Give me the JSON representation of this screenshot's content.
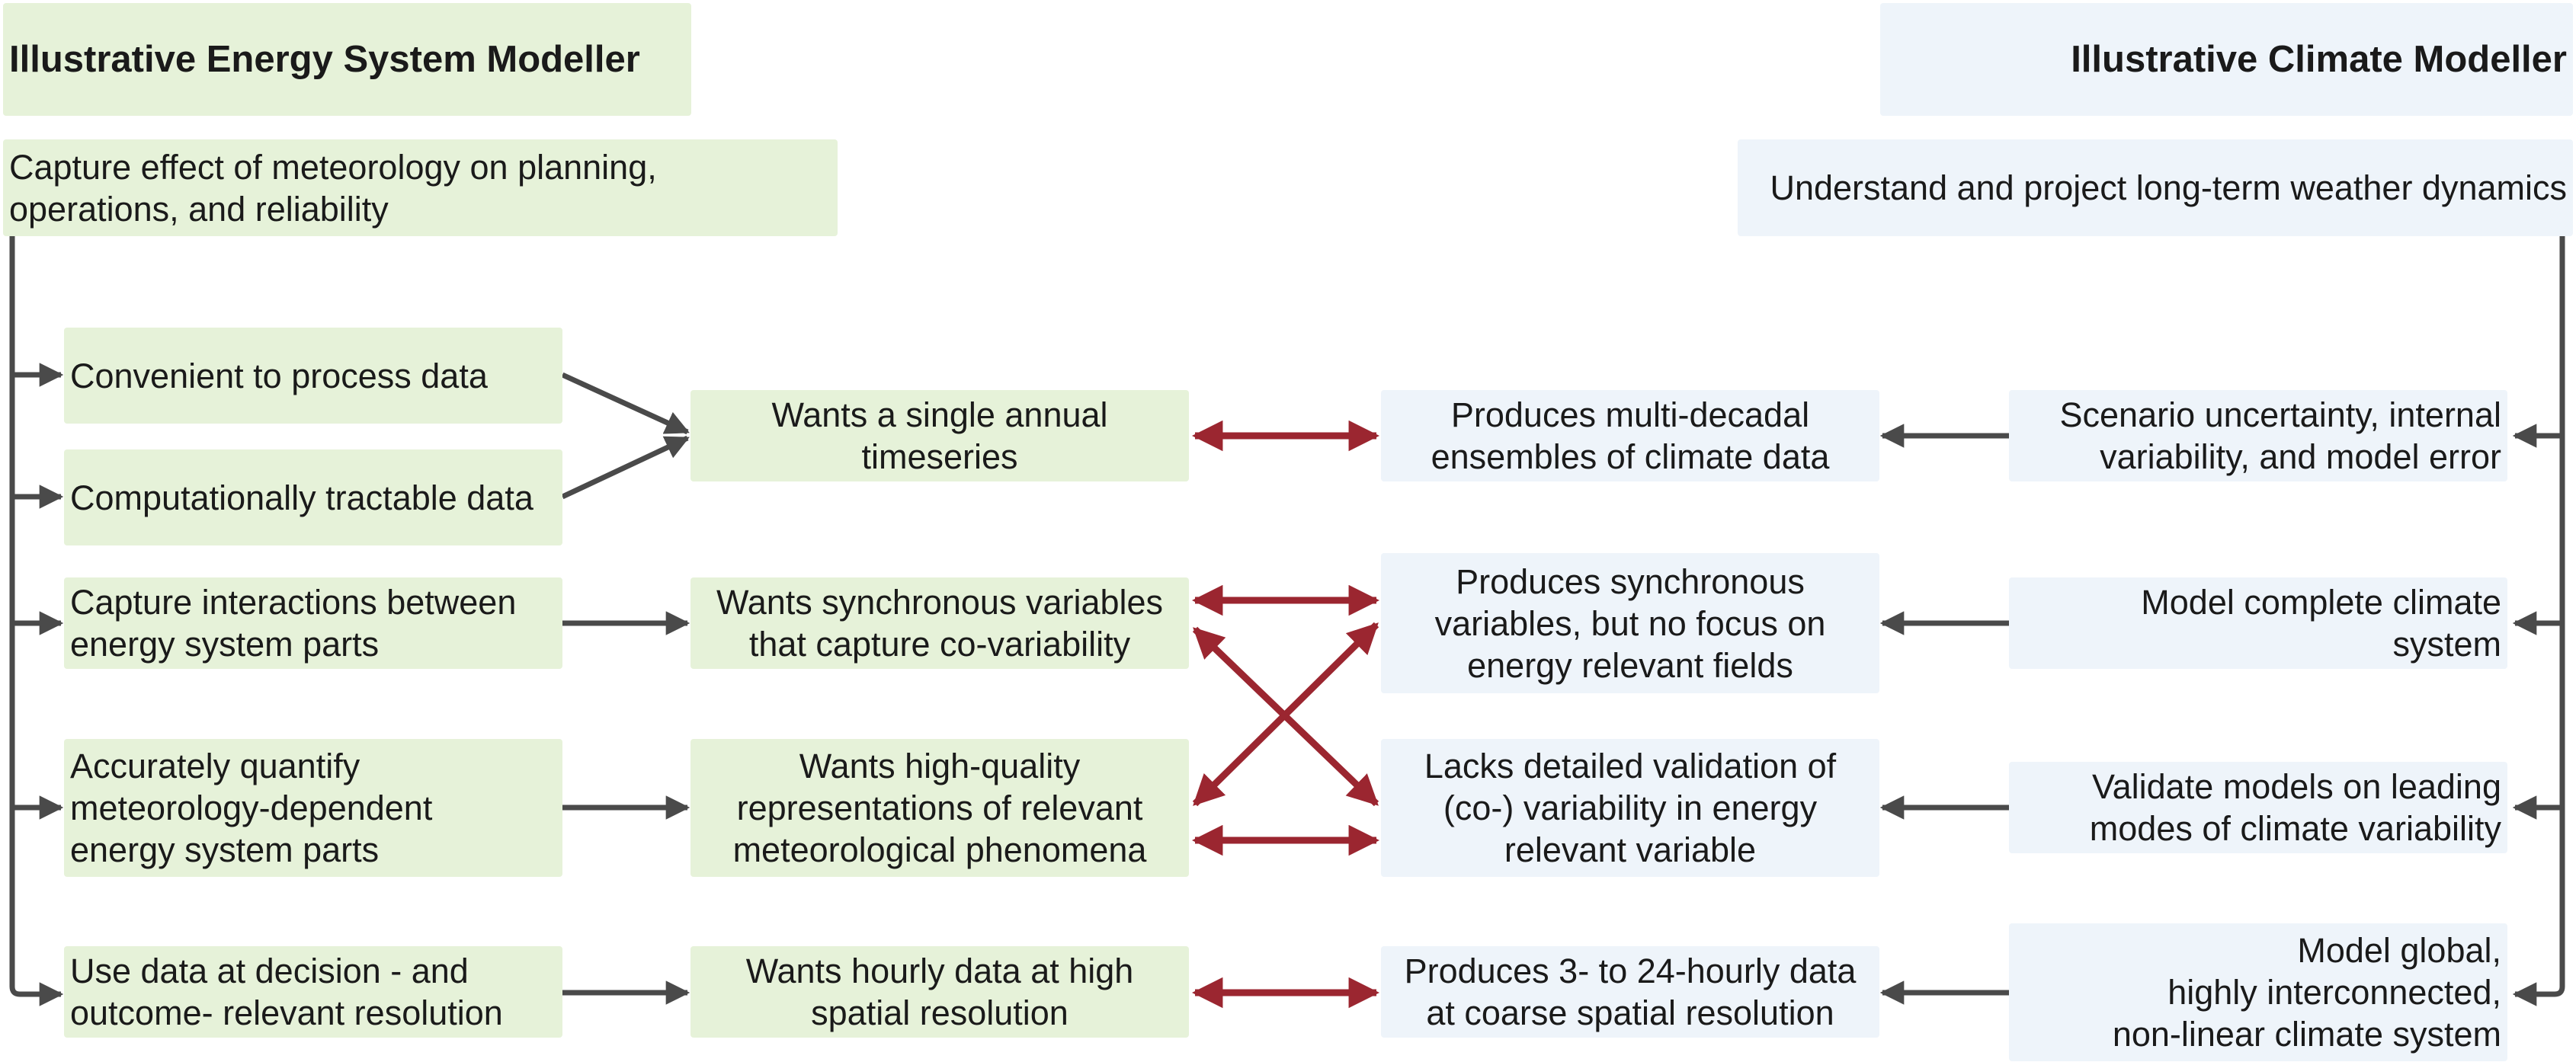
{
  "energy_side": {
    "title": "Illustrative Energy System Modeller",
    "goal": "Capture effect of meteorology on planning,\noperations, and reliability",
    "needs": [
      "Convenient to process data",
      "Computationally tractable data",
      "Capture interactions between\nenergy system parts",
      "Accurately quantify\nmeteorology-dependent\nenergy system parts",
      "Use data at decision - and\noutcome- relevant resolution"
    ],
    "wants": [
      "Wants a single annual\ntimeseries",
      "Wants synchronous variables\nthat capture co-variability",
      "Wants high-quality\nrepresentations of relevant\nmeteorological phenomena",
      "Wants hourly data at high\nspatial resolution"
    ]
  },
  "climate_side": {
    "title": "Illustrative Climate Modeller",
    "goal": "Understand and project long-term weather dynamics",
    "produces": [
      "Produces multi-decadal\nensembles of climate data",
      "Produces synchronous\nvariables, but no focus on\nenergy relevant fields",
      "Lacks detailed validation of\n(co-) variability in energy\nrelevant variable",
      "Produces 3- to 24-hourly data\nat coarse spatial resolution"
    ],
    "drivers": [
      "Scenario uncertainty, internal\nvariability, and model error",
      "Model complete climate\nsystem",
      "Validate models on leading\nmodes of climate variability",
      "Model global,\nhighly interconnected,\nnon-linear climate system"
    ]
  },
  "colors": {
    "energy_fill": "#e6f2d9",
    "climate_fill": "#eef4fa",
    "flow_arrow": "#4a4a4a",
    "mismatch_arrow": "#9b2630"
  }
}
